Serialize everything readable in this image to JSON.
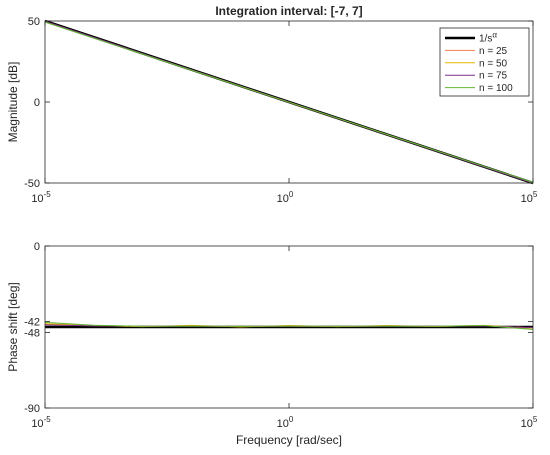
{
  "chart_data": [
    {
      "type": "line",
      "title": "Integration interval: [-7, 7]",
      "xlabel": "",
      "ylabel": "Magnitude [dB]",
      "xscale": "log",
      "xlim": [
        1e-05,
        100000
      ],
      "ylim": [
        -50,
        50
      ],
      "xticks": [
        {
          "v": 1e-05,
          "base": "10",
          "exp": "-5"
        },
        {
          "v": 1,
          "base": "10",
          "exp": "0"
        },
        {
          "v": 100000,
          "base": "10",
          "exp": "5"
        }
      ],
      "yticks": [
        {
          "v": 50,
          "label": "50"
        },
        {
          "v": 0,
          "label": "0"
        },
        {
          "v": -50,
          "label": "-50"
        }
      ],
      "grid": false,
      "legend": {
        "placement": "top-right",
        "entries": [
          {
            "label_base": "1/s",
            "label_sup": "α",
            "color": "#000000"
          },
          {
            "label": "n = 25",
            "color": "#ff7f50"
          },
          {
            "label": "n = 50",
            "color": "#e6b800"
          },
          {
            "label": "n = 75",
            "color": "#7e2f8e"
          },
          {
            "label": "n = 100",
            "color": "#5fb833"
          }
        ]
      },
      "series": [
        {
          "color": "#000000",
          "x": [
            1e-05,
            100000
          ],
          "y": [
            50,
            -50
          ]
        },
        {
          "color": "#ff7f50",
          "x": [
            1e-05,
            100000
          ],
          "y": [
            49.6,
            -49.9
          ]
        },
        {
          "color": "#e6b800",
          "x": [
            1e-05,
            100000
          ],
          "y": [
            49.7,
            -49.9
          ]
        },
        {
          "color": "#7e2f8e",
          "x": [
            1e-05,
            100000
          ],
          "y": [
            49.8,
            -50
          ]
        },
        {
          "color": "#5fb833",
          "x": [
            1e-05,
            100000
          ],
          "y": [
            49.3,
            -49.6
          ]
        }
      ]
    },
    {
      "type": "line",
      "title": "",
      "xlabel": "Frequency [rad/sec]",
      "ylabel": "Phase shift [deg]",
      "xscale": "log",
      "xlim": [
        1e-05,
        100000
      ],
      "ylim": [
        -90,
        0
      ],
      "xticks": [
        {
          "v": 1e-05,
          "base": "10",
          "exp": "-5"
        },
        {
          "v": 1,
          "base": "10",
          "exp": "0"
        },
        {
          "v": 100000,
          "base": "10",
          "exp": "5"
        }
      ],
      "yticks": [
        {
          "v": 0,
          "label": "0"
        },
        {
          "v": -42,
          "label": "-42"
        },
        {
          "v": -48,
          "label": "-48"
        },
        {
          "v": -90,
          "label": "-90"
        }
      ],
      "grid": false,
      "series": [
        {
          "color": "#000000",
          "x": [
            1e-05,
            100000
          ],
          "y": [
            -45,
            -45
          ]
        },
        {
          "color": "#ff7f50",
          "x": [
            1e-05,
            0.0001,
            0.001,
            0.01,
            0.1,
            1,
            10,
            100,
            1000,
            10000,
            100000
          ],
          "y": [
            -43.5,
            -44.3,
            -44.6,
            -44.4,
            -44.7,
            -44.5,
            -44.7,
            -44.4,
            -44.6,
            -44.3,
            -45.5
          ]
        },
        {
          "color": "#e6b800",
          "x": [
            1e-05,
            0.0001,
            0.001,
            0.01,
            0.1,
            1,
            10,
            100,
            1000,
            10000,
            100000
          ],
          "y": [
            -43.2,
            -44.2,
            -44.8,
            -44.1,
            -44.9,
            -44.2,
            -44.8,
            -44.2,
            -44.7,
            -44.1,
            -45.6
          ]
        },
        {
          "color": "#7e2f8e",
          "x": [
            1e-05,
            0.0001,
            0.001,
            0.01,
            0.1,
            1,
            10,
            100,
            1000,
            10000,
            100000
          ],
          "y": [
            -43.8,
            -44.4,
            -44.5,
            -44.6,
            -44.5,
            -44.6,
            -44.5,
            -44.6,
            -44.5,
            -44.4,
            -45.4
          ]
        },
        {
          "color": "#5fb833",
          "x": [
            1e-05,
            0.0001,
            0.001,
            0.01,
            0.1,
            1,
            10,
            100,
            1000,
            10000,
            100000
          ],
          "y": [
            -42.4,
            -44.0,
            -44.6,
            -44.5,
            -44.6,
            -44.5,
            -44.6,
            -44.5,
            -44.6,
            -44.2,
            -46.4
          ]
        }
      ]
    }
  ]
}
